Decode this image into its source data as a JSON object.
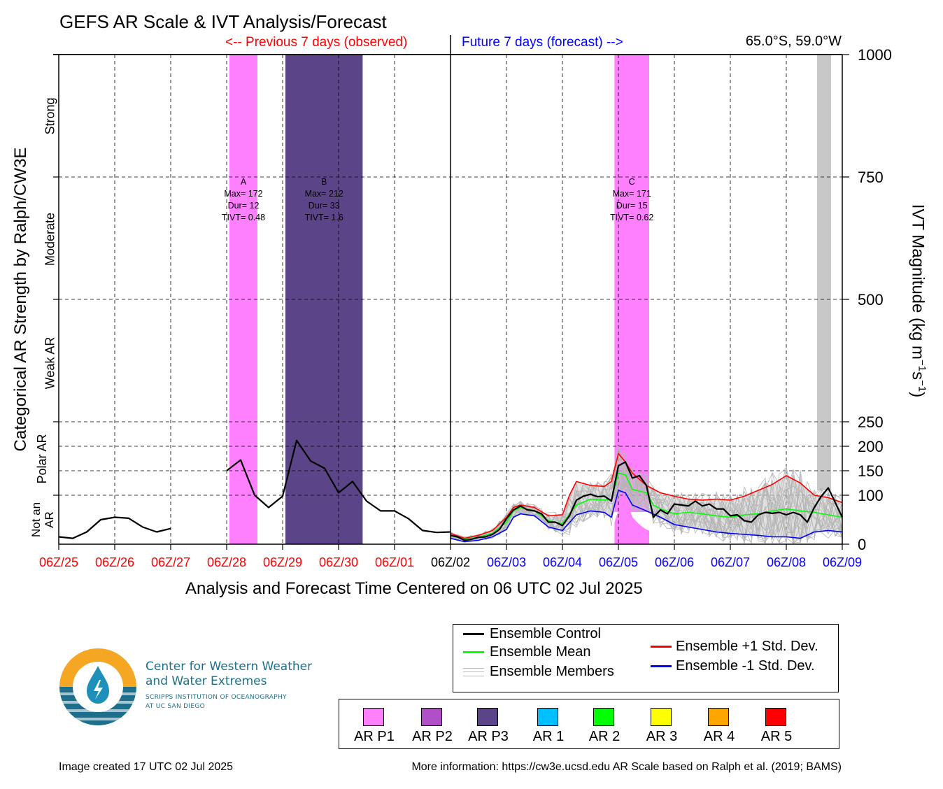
{
  "title": "GEFS AR Scale & IVT Analysis/Forecast",
  "header_prev": "<-- Previous 7 days (observed)",
  "header_future": "Future 7 days (forecast) -->",
  "location": "65.0°S, 59.0°W",
  "colors": {
    "observed": "#ff0000",
    "forecast": "#0000ff",
    "ar_p1": "#ff80ff",
    "ar_p2": "#b04fc8",
    "ar_p3": "#5b4588",
    "ar_1": "#00bfff",
    "ar_2": "#00ff00",
    "ar_3": "#ffff00",
    "ar_4": "#ffa500",
    "ar_5": "#ff0000",
    "shaded": "#c8c8c8",
    "logo_orange": "#f5a623",
    "logo_teal": "#1d6f8c"
  },
  "chart_data": {
    "type": "line",
    "title": "GEFS AR Scale & IVT Analysis/Forecast",
    "xlabel": "Analysis and Forecast Time Centered on 06 UTC 02 Jul 2025",
    "ylabel_left": "Categorical AR Strength by Ralph/CW3E",
    "ylabel_right_base": "IVT Magnitude (kg m",
    "ylabel_right_sup1": "−1",
    "ylabel_right_mid": "s",
    "ylabel_right_sup2": "−1",
    "ylabel_right_end": ")",
    "x_unit": "days relative to 06Z/02 Jul 2025",
    "xlim": [
      -7,
      7
    ],
    "ylim": [
      0,
      1000
    ],
    "x_ticks": [
      {
        "x": -7,
        "label": "06Z/25",
        "color": "#ff0000"
      },
      {
        "x": -6,
        "label": "06Z/26",
        "color": "#ff0000"
      },
      {
        "x": -5,
        "label": "06Z/27",
        "color": "#ff0000"
      },
      {
        "x": -4,
        "label": "06Z/28",
        "color": "#ff0000"
      },
      {
        "x": -3,
        "label": "06Z/29",
        "color": "#ff0000"
      },
      {
        "x": -2,
        "label": "06Z/30",
        "color": "#ff0000"
      },
      {
        "x": -1,
        "label": "06Z/01",
        "color": "#ff0000"
      },
      {
        "x": 0,
        "label": "06Z/02",
        "color": "#000000"
      },
      {
        "x": 1,
        "label": "06Z/03",
        "color": "#0000ff"
      },
      {
        "x": 2,
        "label": "06Z/04",
        "color": "#0000ff"
      },
      {
        "x": 3,
        "label": "06Z/05",
        "color": "#0000ff"
      },
      {
        "x": 4,
        "label": "06Z/06",
        "color": "#0000ff"
      },
      {
        "x": 5,
        "label": "06Z/07",
        "color": "#0000ff"
      },
      {
        "x": 6,
        "label": "06Z/08",
        "color": "#0000ff"
      },
      {
        "x": 7,
        "label": "06Z/09",
        "color": "#0000ff"
      }
    ],
    "y_ticks": [
      0,
      100,
      150,
      200,
      250,
      500,
      750,
      1000
    ],
    "categories": [
      {
        "label": "Strong",
        "lo": 750,
        "hi": 1000
      },
      {
        "label": "Moderate",
        "lo": 500,
        "hi": 750
      },
      {
        "label": "Weak AR",
        "lo": 250,
        "hi": 500
      },
      {
        "label": "Polar AR",
        "lo": 100,
        "hi": 250
      },
      {
        "label": "Not an AR",
        "lo": 0,
        "hi": 100
      }
    ],
    "ar_events": [
      {
        "id": "A",
        "x_start": -3.95,
        "x_end": -3.45,
        "rank": "AR P1",
        "lines": [
          "A",
          "Max= 172",
          "Dur= 12",
          "TIVT= 0.48"
        ]
      },
      {
        "id": "B",
        "x_start": -2.95,
        "x_end": -1.57,
        "rank": "AR P3",
        "lines": [
          "B",
          "Max= 212",
          "Dur= 33",
          "TIVT= 1.6"
        ]
      },
      {
        "id": "C",
        "x_start": 2.93,
        "x_end": 3.55,
        "rank": "AR P1",
        "lines": [
          "C",
          "Max= 171",
          "Dur= 15",
          "TIVT= 0.62"
        ]
      }
    ],
    "forecast_band": {
      "x_start": 2.93,
      "x_end": 3.55,
      "ivt_max": 80,
      "ivt_min": 0
    },
    "gray_band": {
      "x_start": 6.55,
      "x_end": 6.8
    },
    "series": [
      {
        "name": "Ensemble Control",
        "color": "#000000",
        "segments": [
          [
            [
              -7,
              15
            ],
            [
              -6.75,
              12
            ],
            [
              -6.5,
              25
            ],
            [
              -6.25,
              50
            ],
            [
              -6,
              55
            ],
            [
              -5.75,
              53
            ],
            [
              -5.5,
              35
            ],
            [
              -5.25,
              25
            ],
            [
              -5,
              32
            ]
          ],
          [
            [
              -4,
              150
            ],
            [
              -3.75,
              172
            ],
            [
              -3.5,
              100
            ],
            [
              -3.25,
              75
            ],
            [
              -3,
              98
            ],
            [
              -2.75,
              212
            ],
            [
              -2.5,
              170
            ],
            [
              -2.25,
              155
            ],
            [
              -2,
              105
            ],
            [
              -1.75,
              128
            ],
            [
              -1.5,
              88
            ],
            [
              -1.25,
              68
            ],
            [
              -1,
              68
            ],
            [
              -0.75,
              52
            ],
            [
              -0.5,
              28
            ],
            [
              -0.25,
              24
            ],
            [
              0,
              25
            ]
          ],
          [
            [
              0,
              18
            ],
            [
              0.125,
              15
            ],
            [
              0.25,
              8
            ],
            [
              0.375,
              10
            ],
            [
              0.5,
              14
            ],
            [
              0.625,
              15
            ],
            [
              0.75,
              20
            ],
            [
              0.875,
              30
            ],
            [
              1,
              52
            ],
            [
              1.125,
              70
            ],
            [
              1.25,
              78
            ],
            [
              1.375,
              70
            ],
            [
              1.5,
              68
            ],
            [
              1.625,
              62
            ],
            [
              1.75,
              45
            ],
            [
              1.875,
              45
            ],
            [
              2,
              38
            ],
            [
              2.125,
              58
            ],
            [
              2.25,
              90
            ],
            [
              2.375,
              98
            ],
            [
              2.5,
              102
            ],
            [
              2.625,
              97
            ],
            [
              2.75,
              98
            ],
            [
              2.875,
              88
            ],
            [
              3,
              160
            ],
            [
              3.125,
              168
            ],
            [
              3.25,
              135
            ],
            [
              3.375,
              140
            ],
            [
              3.5,
              120
            ],
            [
              3.625,
              55
            ],
            [
              3.75,
              70
            ],
            [
              3.875,
              62
            ],
            [
              4,
              82
            ],
            [
              4.125,
              80
            ],
            [
              4.25,
              78
            ],
            [
              4.375,
              88
            ],
            [
              4.5,
              78
            ],
            [
              4.625,
              82
            ],
            [
              4.75,
              72
            ],
            [
              4.875,
              72
            ],
            [
              5,
              58
            ],
            [
              5.125,
              60
            ],
            [
              5.25,
              48
            ],
            [
              5.375,
              45
            ],
            [
              5.5,
              60
            ],
            [
              5.625,
              65
            ],
            [
              5.75,
              63
            ],
            [
              5.875,
              65
            ],
            [
              6,
              60
            ],
            [
              6.125,
              65
            ],
            [
              6.25,
              60
            ],
            [
              6.375,
              45
            ],
            [
              6.5,
              75
            ],
            [
              6.625,
              98
            ],
            [
              6.75,
              115
            ],
            [
              6.875,
              85
            ],
            [
              7,
              55
            ]
          ]
        ]
      },
      {
        "name": "Ensemble Mean",
        "color": "#00ff00",
        "segments": [
          [
            [
              0,
              18
            ],
            [
              0.25,
              10
            ],
            [
              0.5,
              14
            ],
            [
              0.75,
              22
            ],
            [
              1,
              45
            ],
            [
              1.125,
              68
            ],
            [
              1.25,
              75
            ],
            [
              1.5,
              68
            ],
            [
              1.75,
              48
            ],
            [
              2,
              42
            ],
            [
              2.25,
              80
            ],
            [
              2.5,
              92
            ],
            [
              2.75,
              90
            ],
            [
              2.875,
              92
            ],
            [
              3,
              145
            ],
            [
              3.125,
              142
            ],
            [
              3.25,
              112
            ],
            [
              3.5,
              105
            ],
            [
              3.625,
              80
            ],
            [
              3.75,
              72
            ],
            [
              4,
              62
            ],
            [
              4.25,
              65
            ],
            [
              4.5,
              62
            ],
            [
              4.75,
              58
            ],
            [
              5,
              55
            ],
            [
              5.25,
              60
            ],
            [
              5.5,
              62
            ],
            [
              5.75,
              68
            ],
            [
              6,
              72
            ],
            [
              6.25,
              68
            ],
            [
              6.5,
              65
            ],
            [
              6.75,
              60
            ],
            [
              7,
              55
            ]
          ]
        ]
      },
      {
        "name": "Ensemble +1 Std. Dev.",
        "color": "#ff0000",
        "segments": [
          [
            [
              0,
              22
            ],
            [
              0.25,
              12
            ],
            [
              0.5,
              18
            ],
            [
              0.75,
              28
            ],
            [
              1,
              55
            ],
            [
              1.125,
              75
            ],
            [
              1.25,
              80
            ],
            [
              1.5,
              75
            ],
            [
              1.75,
              58
            ],
            [
              2,
              60
            ],
            [
              2.125,
              100
            ],
            [
              2.25,
              128
            ],
            [
              2.5,
              120
            ],
            [
              2.75,
              118
            ],
            [
              2.875,
              128
            ],
            [
              3,
              185
            ],
            [
              3.125,
              168
            ],
            [
              3.25,
              145
            ],
            [
              3.5,
              120
            ],
            [
              3.75,
              105
            ],
            [
              4,
              98
            ],
            [
              4.25,
              92
            ],
            [
              4.5,
              90
            ],
            [
              4.75,
              92
            ],
            [
              5,
              90
            ],
            [
              5.25,
              98
            ],
            [
              5.5,
              110
            ],
            [
              5.75,
              122
            ],
            [
              6,
              140
            ],
            [
              6.25,
              125
            ],
            [
              6.5,
              100
            ],
            [
              6.75,
              95
            ],
            [
              7,
              85
            ]
          ]
        ]
      },
      {
        "name": "Ensemble -1 Std. Dev.",
        "color": "#0000ff",
        "segments": [
          [
            [
              0,
              12
            ],
            [
              0.25,
              5
            ],
            [
              0.5,
              8
            ],
            [
              0.75,
              15
            ],
            [
              1,
              30
            ],
            [
              1.125,
              55
            ],
            [
              1.25,
              62
            ],
            [
              1.5,
              58
            ],
            [
              1.75,
              35
            ],
            [
              2,
              28
            ],
            [
              2.25,
              60
            ],
            [
              2.5,
              68
            ],
            [
              2.75,
              65
            ],
            [
              2.875,
              55
            ],
            [
              3,
              110
            ],
            [
              3.125,
              105
            ],
            [
              3.25,
              80
            ],
            [
              3.5,
              68
            ],
            [
              3.75,
              55
            ],
            [
              4,
              40
            ],
            [
              4.25,
              35
            ],
            [
              4.5,
              30
            ],
            [
              4.75,
              25
            ],
            [
              5,
              22
            ],
            [
              5.25,
              20
            ],
            [
              5.5,
              18
            ],
            [
              5.75,
              15
            ],
            [
              6,
              15
            ],
            [
              6.25,
              12
            ],
            [
              6.5,
              25
            ],
            [
              6.75,
              28
            ],
            [
              7,
              25
            ]
          ]
        ]
      }
    ]
  },
  "legend_lines": [
    {
      "label": "Ensemble Control",
      "color": "#000000"
    },
    {
      "label": "Ensemble Mean",
      "color": "#00ff00"
    },
    {
      "label": "Ensemble Members",
      "color": "#c0c0c0"
    },
    {
      "label": "Ensemble +1 Std. Dev.",
      "color": "#ff0000"
    },
    {
      "label": "Ensemble -1 Std. Dev.",
      "color": "#0000ff"
    }
  ],
  "legend_scale": [
    {
      "label": "AR P1",
      "color": "#ff80ff"
    },
    {
      "label": "AR P2",
      "color": "#b04fc8"
    },
    {
      "label": "AR P3",
      "color": "#5b4588"
    },
    {
      "label": "AR 1",
      "color": "#00bfff"
    },
    {
      "label": "AR 2",
      "color": "#00ff00"
    },
    {
      "label": "AR 3",
      "color": "#ffff00"
    },
    {
      "label": "AR 4",
      "color": "#ffa500"
    },
    {
      "label": "AR 5",
      "color": "#ff0000"
    }
  ],
  "logo": {
    "line1": "Center for Western Weather",
    "line2": "and Water Extremes",
    "line3": "SCRIPPS INSTITUTION OF OCEANOGRAPHY",
    "line4": "AT UC SAN DIEGO"
  },
  "footer": {
    "created": "Image created 17 UTC 02 Jul 2025",
    "info": "More information: https://cw3e.ucsd.edu AR Scale based on Ralph et al. (2019; BAMS)"
  }
}
